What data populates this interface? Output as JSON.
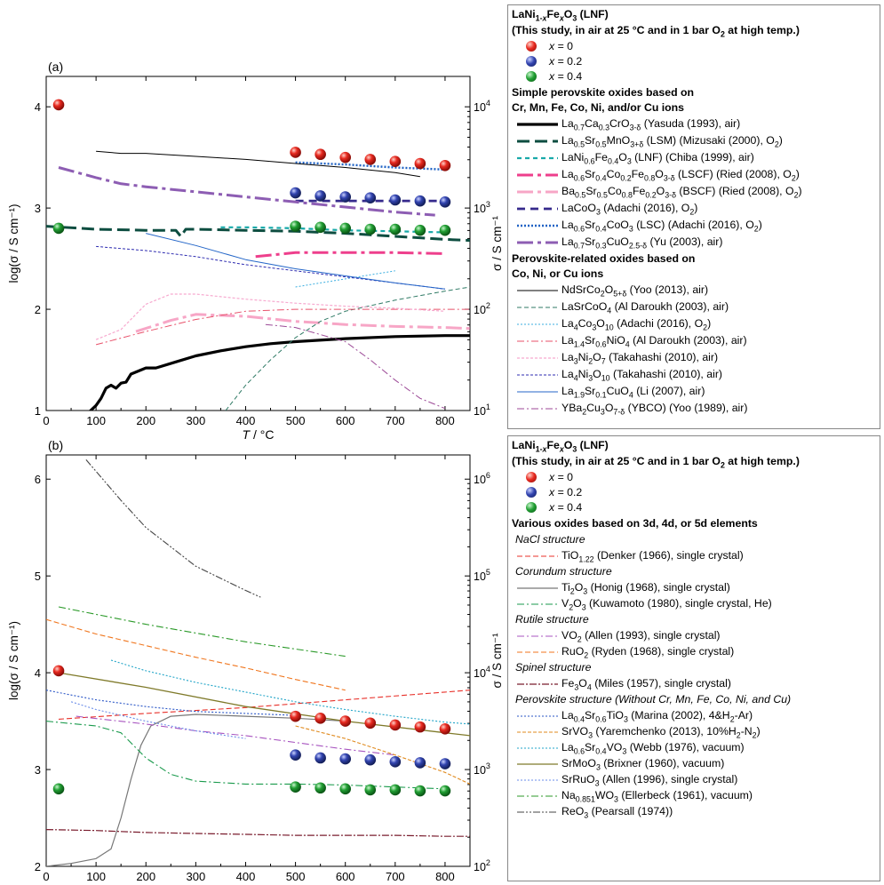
{
  "chart_data": [
    {
      "type": "line",
      "panel_label": "(a)",
      "xlabel": "T / °C",
      "ylabel": "log(σ / S cm⁻¹)",
      "y2label": "σ / S cm⁻¹",
      "xlim": [
        0,
        850
      ],
      "ylim": [
        1,
        4.3
      ],
      "x_ticks": [
        0,
        100,
        200,
        300,
        400,
        500,
        600,
        700,
        800
      ],
      "y_ticks": [
        1,
        2,
        3,
        4
      ],
      "y2_ticks": [
        "10^1",
        "10^2",
        "10^3",
        "10^4"
      ],
      "colors": {
        "x0": "#e0201b",
        "x02": "#2e3fa6",
        "x04": "#1d9a2c"
      },
      "scatter": [
        {
          "name": "x = 0",
          "x": [
            25,
            500,
            550,
            600,
            650,
            700,
            750,
            800
          ],
          "y": [
            4.02,
            3.55,
            3.53,
            3.5,
            3.48,
            3.46,
            3.44,
            3.42
          ]
        },
        {
          "name": "x = 0.2",
          "x": [
            500,
            550,
            600,
            650,
            700,
            750,
            800
          ],
          "y": [
            3.15,
            3.12,
            3.11,
            3.1,
            3.08,
            3.07,
            3.06
          ]
        },
        {
          "name": "x = 0.4",
          "x": [
            25,
            500,
            550,
            600,
            650,
            700,
            750,
            800
          ],
          "y": [
            2.8,
            2.82,
            2.81,
            2.8,
            2.79,
            2.79,
            2.78,
            2.78
          ]
        }
      ],
      "series": [
        {
          "name": "La0.7Ca0.3CrO3-δ (Yasuda (1993), air)",
          "color": "#000000",
          "width": 3.2,
          "dash": "",
          "x": [
            85,
            100,
            110,
            120,
            130,
            140,
            150,
            160,
            170,
            200,
            220,
            260,
            300,
            350,
            400,
            450,
            500,
            600,
            700,
            800,
            850
          ],
          "y": [
            0.98,
            1.05,
            1.12,
            1.22,
            1.25,
            1.22,
            1.27,
            1.28,
            1.36,
            1.42,
            1.42,
            1.48,
            1.54,
            1.59,
            1.63,
            1.66,
            1.68,
            1.71,
            1.73,
            1.74,
            1.74
          ]
        },
        {
          "name": "La0.5Sr0.5MnO3+δ (LSM) (Mizusaki (2000), O2)",
          "color": "#0d4d40",
          "width": 3,
          "dash": "14,6",
          "x": [
            0,
            100,
            200,
            260,
            270,
            280,
            300,
            400,
            500,
            600,
            700,
            800,
            850
          ],
          "y": [
            2.82,
            2.79,
            2.78,
            2.78,
            2.72,
            2.79,
            2.79,
            2.78,
            2.77,
            2.75,
            2.72,
            2.69,
            2.68
          ]
        },
        {
          "name": "LaNi0.6Fe0.4O3 (LNF) (Chiba (1999), air)",
          "color": "#18a9a9",
          "width": 2.2,
          "dash": "5,4",
          "x": [
            350,
            400,
            500,
            600,
            700,
            800
          ],
          "y": [
            2.81,
            2.81,
            2.8,
            2.78,
            2.77,
            2.76
          ]
        },
        {
          "name": "La0.6Sr0.4Co0.2Fe0.8O3-δ (LSCF) (Ried (2008), O2)",
          "color": "#ee3f8c",
          "width": 3,
          "dash": "18,5,4,5",
          "x": [
            420,
            500,
            600,
            700,
            800
          ],
          "y": [
            2.52,
            2.56,
            2.56,
            2.56,
            2.55
          ]
        },
        {
          "name": "Ba0.5Sr0.5Co0.8Fe0.2O3-δ (BSCF) (Ried (2008), O2)",
          "color": "#f7a6c6",
          "width": 3,
          "dash": "18,5,4,5",
          "x": [
            180,
            250,
            300,
            400,
            500,
            600,
            700,
            800,
            850
          ],
          "y": [
            1.78,
            1.89,
            1.95,
            1.93,
            1.88,
            1.85,
            1.83,
            1.82,
            1.81
          ]
        },
        {
          "name": "LaCoO3 (Adachi (2016), O2)",
          "color": "#362a8c",
          "width": 2.8,
          "dash": "9,6",
          "x": [
            500,
            600,
            700,
            800
          ],
          "y": [
            3.07,
            3.07,
            3.07,
            3.07
          ]
        },
        {
          "name": "La0.6Sr0.4CoO3 (LSC) (Adachi (2016), O2)",
          "color": "#1f62c4",
          "width": 2.4,
          "dash": "2,2",
          "x": [
            500,
            600,
            700,
            800
          ],
          "y": [
            3.45,
            3.43,
            3.4,
            3.38
          ]
        },
        {
          "name": "La0.7Sr0.3CuO2.5-δ (Yu (2003), air)",
          "color": "#8d5db3",
          "width": 3,
          "dash": "18,5,4,5",
          "x": [
            25,
            100,
            150,
            200,
            300,
            400,
            500,
            600,
            700,
            780
          ],
          "y": [
            3.4,
            3.3,
            3.24,
            3.21,
            3.16,
            3.11,
            3.06,
            3.01,
            2.96,
            2.93
          ]
        },
        {
          "name": "NdSrCo2O5+δ (Yoo (2013), air)",
          "color": "#000000",
          "width": 1,
          "dash": "",
          "x": [
            100,
            150,
            200,
            300,
            400,
            500,
            600,
            700,
            750
          ],
          "y": [
            3.56,
            3.54,
            3.54,
            3.51,
            3.48,
            3.44,
            3.4,
            3.35,
            3.31
          ]
        },
        {
          "name": "LaSrCoO4 (Al Daroukh (2003), air)",
          "color": "#2f7a65",
          "width": 1,
          "dash": "5,3",
          "x": [
            360,
            400,
            450,
            500,
            550,
            600,
            700,
            800,
            850
          ],
          "y": [
            1.0,
            1.25,
            1.5,
            1.72,
            1.88,
            1.98,
            2.09,
            2.18,
            2.22
          ]
        },
        {
          "name": "La4Co3O10 (Adachi (2016), O2)",
          "color": "#3baee0",
          "width": 1,
          "dash": "2,2",
          "x": [
            500,
            550,
            600,
            650,
            700
          ],
          "y": [
            2.22,
            2.26,
            2.3,
            2.34,
            2.38
          ]
        },
        {
          "name": "La1.4Sr0.6NiO4 (Al Daroukh (2003), air)",
          "color": "#e8516a",
          "width": 1,
          "dash": "8,3,2,3",
          "x": [
            100,
            200,
            300,
            400,
            500,
            600,
            700,
            800,
            850
          ],
          "y": [
            1.65,
            1.78,
            1.9,
            1.98,
            2.0,
            2.0,
            2.0,
            2.0,
            2.0
          ]
        },
        {
          "name": "La3Ni2O7 (Takahashi (2010), air)",
          "color": "#f7a9cf",
          "width": 1.2,
          "dash": "3,2",
          "x": [
            100,
            150,
            200,
            250,
            300,
            400,
            500,
            600,
            700,
            800
          ],
          "y": [
            1.7,
            1.8,
            2.05,
            2.15,
            2.15,
            2.1,
            2.06,
            2.03,
            2.01,
            1.98
          ]
        },
        {
          "name": "La4Ni3O10 (Takahashi (2010), air)",
          "color": "#2d2bb0",
          "width": 1,
          "dash": "3,2",
          "x": [
            100,
            200,
            300,
            400,
            500,
            600,
            700,
            800
          ],
          "y": [
            2.62,
            2.58,
            2.52,
            2.44,
            2.38,
            2.32,
            2.26,
            2.2
          ]
        },
        {
          "name": "La1.9Sr0.1CuO4 (Li (2007), air)",
          "color": "#2466c8",
          "width": 1,
          "dash": "",
          "x": [
            200,
            300,
            400,
            500,
            600,
            700,
            800
          ],
          "y": [
            2.75,
            2.63,
            2.49,
            2.4,
            2.33,
            2.26,
            2.2
          ]
        },
        {
          "name": "YBa2Cu3O7-δ (YBCO) (Yoo (1989), air)",
          "color": "#9c4a97",
          "width": 1,
          "dash": "8,3,2,3",
          "x": [
            440,
            500,
            600,
            650,
            700,
            750,
            800
          ],
          "y": [
            1.85,
            1.82,
            1.68,
            1.5,
            1.3,
            1.12,
            1.02
          ]
        }
      ]
    },
    {
      "type": "line",
      "panel_label": "(b)",
      "xlabel": "T / °C",
      "ylabel": "log(σ / S cm⁻¹)",
      "y2label": "σ / S cm⁻¹",
      "xlim": [
        0,
        850
      ],
      "ylim": [
        2,
        6.25
      ],
      "x_ticks": [
        0,
        100,
        200,
        300,
        400,
        500,
        600,
        700,
        800
      ],
      "y_ticks": [
        2,
        3,
        4,
        5,
        6
      ],
      "y2_ticks": [
        "10^2",
        "10^3",
        "10^4",
        "10^5",
        "10^6"
      ],
      "scatter": [
        {
          "name": "x = 0",
          "x": [
            25,
            500,
            550,
            600,
            650,
            700,
            750,
            800
          ],
          "y": [
            4.02,
            3.55,
            3.53,
            3.5,
            3.48,
            3.46,
            3.44,
            3.42
          ]
        },
        {
          "name": "x = 0.2",
          "x": [
            500,
            550,
            600,
            650,
            700,
            750,
            800
          ],
          "y": [
            3.15,
            3.12,
            3.11,
            3.1,
            3.08,
            3.07,
            3.06
          ]
        },
        {
          "name": "x = 0.4",
          "x": [
            25,
            500,
            550,
            600,
            650,
            700,
            750,
            800
          ],
          "y": [
            2.8,
            2.82,
            2.81,
            2.8,
            2.79,
            2.79,
            2.78,
            2.78
          ]
        }
      ],
      "series": [
        {
          "name": "TiO1.22 (Denker (1966), single crystal)",
          "color": "#e8312a",
          "width": 1.1,
          "dash": "6,3",
          "x": [
            25,
            200,
            400,
            600,
            800,
            850
          ],
          "y": [
            3.52,
            3.58,
            3.64,
            3.72,
            3.8,
            3.82
          ]
        },
        {
          "name": "Ti2O3 (Honig (1968), single crystal)",
          "color": "#777777",
          "width": 1.2,
          "dash": "",
          "x": [
            0,
            50,
            100,
            130,
            150,
            170,
            190,
            210,
            250,
            300,
            400,
            500,
            600
          ],
          "y": [
            2.0,
            2.03,
            2.08,
            2.18,
            2.5,
            2.9,
            3.25,
            3.45,
            3.55,
            3.57,
            3.55,
            3.53,
            3.5
          ]
        },
        {
          "name": "V2O3 (Kuwamoto (1980), single crystal, He)",
          "color": "#1a9a4c",
          "width": 1.1,
          "dash": "8,3,2,3",
          "x": [
            0,
            100,
            150,
            200,
            250,
            300,
            400,
            500,
            600,
            700,
            800
          ],
          "y": [
            3.5,
            3.45,
            3.38,
            3.12,
            2.95,
            2.88,
            2.85,
            2.85,
            2.84,
            2.82,
            2.8
          ]
        },
        {
          "name": "VO2 (Allen (1993), single crystal)",
          "color": "#a855c0",
          "width": 1.1,
          "dash": "8,3,2,3",
          "x": [
            60,
            200,
            300,
            400,
            500,
            600,
            700
          ],
          "y": [
            3.55,
            3.47,
            3.4,
            3.35,
            3.28,
            3.21,
            3.15
          ]
        },
        {
          "name": "RuO2 (Ryden (1968), single crystal)",
          "color": "#f0761e",
          "width": 1.1,
          "dash": "6,3",
          "x": [
            0,
            100,
            200,
            300,
            400,
            500,
            600
          ],
          "y": [
            4.55,
            4.4,
            4.28,
            4.16,
            4.05,
            3.93,
            3.82
          ]
        },
        {
          "name": "Fe3O4 (Miles (1957), single crystal)",
          "color": "#7a1d2e",
          "width": 1.2,
          "dash": "8,2,2,2",
          "x": [
            0,
            100,
            200,
            300,
            400,
            500,
            600,
            700,
            800,
            850
          ],
          "y": [
            2.38,
            2.37,
            2.35,
            2.34,
            2.33,
            2.32,
            2.32,
            2.32,
            2.31,
            2.31
          ]
        },
        {
          "name": "La0.4Sr0.6TiO3 (Marina (2002), 4&H2-Ar)",
          "color": "#2a56c6",
          "width": 1.1,
          "dash": "2,2",
          "x": [
            0,
            100,
            200,
            300,
            400,
            500
          ],
          "y": [
            3.82,
            3.72,
            3.65,
            3.6,
            3.58,
            3.56
          ]
        },
        {
          "name": "SrVO3 (Yaremchenko (2013), 10%H2-N2)",
          "color": "#e08a1e",
          "width": 1.1,
          "dash": "4,2",
          "x": [
            500,
            600,
            700,
            800,
            850
          ],
          "y": [
            3.45,
            3.32,
            3.15,
            2.97,
            2.85
          ]
        },
        {
          "name": "La0.6Sr0.4VO3 (Webb (1976), vacuum)",
          "color": "#22a5c8",
          "width": 1.1,
          "dash": "2,2",
          "x": [
            130,
            200,
            300,
            400,
            500,
            600,
            700,
            800,
            850
          ],
          "y": [
            4.13,
            4.02,
            3.9,
            3.8,
            3.7,
            3.62,
            3.55,
            3.49,
            3.47
          ]
        },
        {
          "name": "SrMoO3 (Brixner (1960), vacuum)",
          "color": "#7f7a2a",
          "width": 1.3,
          "dash": "",
          "x": [
            25,
            200,
            400,
            600,
            800,
            850
          ],
          "y": [
            4.0,
            3.85,
            3.65,
            3.5,
            3.38,
            3.35
          ]
        },
        {
          "name": "SrRuO3 (Allen (1996), single crystal)",
          "color": "#6a8ce8",
          "width": 1.1,
          "dash": "2,2",
          "x": [
            50,
            100,
            200,
            300,
            400
          ],
          "y": [
            3.7,
            3.62,
            3.5,
            3.4,
            3.32
          ]
        },
        {
          "name": "Na0.851WO3 (Ellerbeck (1961), vacuum)",
          "color": "#2c9a2a",
          "width": 1.1,
          "dash": "8,3,2,3",
          "x": [
            25,
            200,
            400,
            600
          ],
          "y": [
            4.68,
            4.5,
            4.32,
            4.17
          ]
        },
        {
          "name": "ReO3 (Pearsall (1974))",
          "color": "#444444",
          "width": 1.1,
          "dash": "8,2,2,2,2,2",
          "x": [
            80,
            150,
            200,
            300,
            400,
            430
          ],
          "y": [
            6.2,
            5.78,
            5.5,
            5.1,
            4.85,
            4.78
          ]
        }
      ]
    }
  ]
}
